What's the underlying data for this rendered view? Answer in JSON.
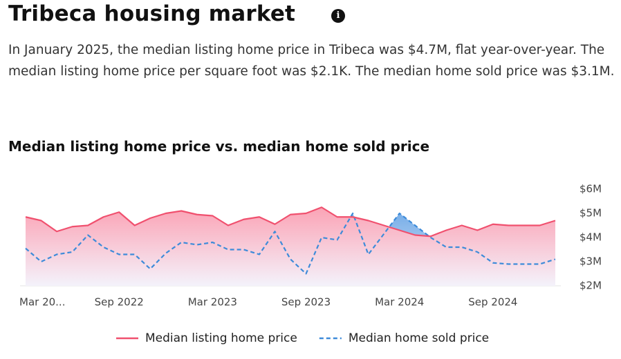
{
  "header": {
    "title": "Tribeca housing market",
    "description": "In January 2025, the median listing home price in Tribeca was $4.7M, flat year-over-year. The median listing home price per square foot was $2.1K. The median home sold price was $3.1M."
  },
  "chart_data": {
    "type": "line",
    "title": "Median listing home price vs. median home sold price",
    "categories": [
      "Mar 20...",
      null,
      null,
      null,
      null,
      null,
      "Sep 2022",
      null,
      null,
      null,
      null,
      null,
      "Mar 2023",
      null,
      null,
      null,
      null,
      null,
      "Sep 2023",
      null,
      null,
      null,
      null,
      null,
      "Mar 2024",
      null,
      null,
      null,
      null,
      null,
      "Sep 2024",
      null,
      null,
      null,
      null
    ],
    "series": [
      {
        "name": "Median listing home price",
        "color": "#f0506e",
        "dash": false,
        "values": [
          4.85,
          4.7,
          4.25,
          4.45,
          4.5,
          4.85,
          5.05,
          4.5,
          4.8,
          5.0,
          5.1,
          4.95,
          4.9,
          4.5,
          4.75,
          4.85,
          4.55,
          4.95,
          5.0,
          5.25,
          4.85,
          4.85,
          4.7,
          4.5,
          4.3,
          4.1,
          4.05,
          4.3,
          4.5,
          4.3,
          4.55,
          4.5,
          4.5,
          4.5,
          4.7
        ]
      },
      {
        "name": "Median home sold price",
        "color": "#3d8bd9",
        "dash": true,
        "values": [
          3.55,
          3.0,
          3.3,
          3.4,
          4.1,
          3.6,
          3.3,
          3.3,
          2.7,
          3.35,
          3.8,
          3.7,
          3.8,
          3.5,
          3.5,
          3.3,
          4.25,
          3.1,
          2.5,
          4.0,
          3.9,
          5.0,
          3.3,
          4.15,
          5.0,
          4.5,
          4.0,
          3.6,
          3.6,
          3.4,
          2.95,
          2.9,
          2.9,
          2.9,
          3.1
        ]
      }
    ],
    "ylim": [
      2,
      6
    ],
    "yticks": [
      {
        "value": 2,
        "label": "$2M"
      },
      {
        "value": 3,
        "label": "$3M"
      },
      {
        "value": 4,
        "label": "$4M"
      },
      {
        "value": 5,
        "label": "$5M"
      },
      {
        "value": 6,
        "label": "$6M"
      }
    ],
    "grid": false
  }
}
